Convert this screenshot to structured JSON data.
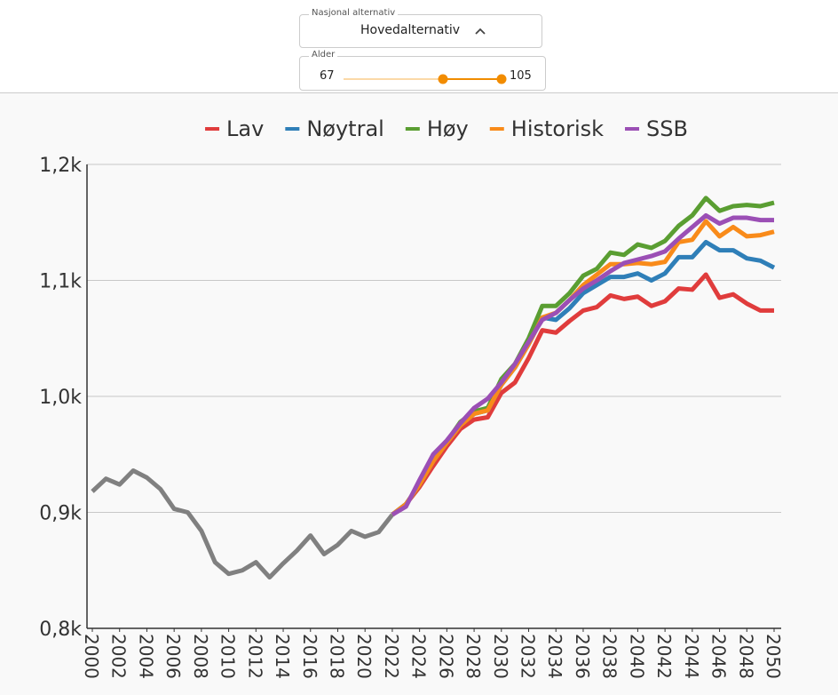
{
  "controls": {
    "alternative_label": "Nasjonal alternativ",
    "alternative_value": "Hovedalternativ",
    "age_label": "Alder",
    "age_min": "67",
    "age_max": "105"
  },
  "chart_data": {
    "type": "line",
    "x": [
      2000,
      2001,
      2002,
      2003,
      2004,
      2005,
      2006,
      2007,
      2008,
      2009,
      2010,
      2011,
      2012,
      2013,
      2014,
      2015,
      2016,
      2017,
      2018,
      2019,
      2020,
      2021,
      2022,
      2023,
      2024,
      2025,
      2026,
      2027,
      2028,
      2029,
      2030,
      2031,
      2032,
      2033,
      2034,
      2035,
      2036,
      2037,
      2038,
      2039,
      2040,
      2041,
      2042,
      2043,
      2044,
      2045,
      2046,
      2047,
      2048,
      2049,
      2050
    ],
    "xlim": [
      2000,
      2050
    ],
    "xticks": [
      2000,
      2002,
      2004,
      2006,
      2008,
      2010,
      2012,
      2014,
      2016,
      2018,
      2020,
      2022,
      2024,
      2026,
      2028,
      2030,
      2032,
      2034,
      2036,
      2038,
      2040,
      2042,
      2044,
      2046,
      2048,
      2050
    ],
    "ylim": [
      800,
      1200
    ],
    "yticks": [
      {
        "value": 800,
        "label": "0,8k"
      },
      {
        "value": 900,
        "label": "0,9k"
      },
      {
        "value": 1000,
        "label": "1,0k"
      },
      {
        "value": 1100,
        "label": "1,1k"
      },
      {
        "value": 1200,
        "label": "1,2k"
      }
    ],
    "grid": true,
    "legend": "top",
    "series": [
      {
        "color": "#808080",
        "values": [
          918,
          929,
          924,
          936,
          930,
          920,
          903,
          900,
          884,
          857,
          847,
          850,
          857,
          844,
          856,
          867,
          880,
          864,
          872,
          884,
          879,
          883,
          898,
          null,
          null,
          null,
          null,
          null,
          null,
          null,
          null,
          null,
          null,
          null,
          null,
          null,
          null,
          null,
          null,
          null,
          null,
          null,
          null,
          null,
          null,
          null,
          null,
          null,
          null,
          null,
          null
        ]
      },
      {
        "name": "Lav",
        "color": "#e03c3c",
        "values": [
          null,
          null,
          null,
          null,
          null,
          null,
          null,
          null,
          null,
          null,
          null,
          null,
          null,
          null,
          null,
          null,
          null,
          null,
          null,
          null,
          null,
          null,
          898,
          907,
          922,
          940,
          957,
          972,
          980,
          982,
          1003,
          1012,
          1033,
          1057,
          1055,
          1065,
          1074,
          1077,
          1087,
          1084,
          1086,
          1078,
          1082,
          1093,
          1092,
          1105,
          1085,
          1088,
          1080,
          1074,
          1074
        ]
      },
      {
        "name": "Nøytral",
        "color": "#2f7fb8",
        "values": [
          null,
          null,
          null,
          null,
          null,
          null,
          null,
          null,
          null,
          null,
          null,
          null,
          null,
          null,
          null,
          null,
          null,
          null,
          null,
          null,
          null,
          null,
          898,
          907,
          924,
          944,
          960,
          975,
          985,
          988,
          1010,
          1025,
          1045,
          1068,
          1066,
          1076,
          1089,
          1096,
          1103,
          1103,
          1106,
          1100,
          1106,
          1120,
          1120,
          1133,
          1126,
          1126,
          1119,
          1117,
          1111
        ]
      },
      {
        "name": "Høy",
        "color": "#5a9e32",
        "values": [
          null,
          null,
          null,
          null,
          null,
          null,
          null,
          null,
          null,
          null,
          null,
          null,
          null,
          null,
          null,
          null,
          null,
          null,
          null,
          null,
          null,
          null,
          898,
          907,
          924,
          945,
          961,
          978,
          987,
          990,
          1015,
          1028,
          1050,
          1078,
          1078,
          1089,
          1104,
          1110,
          1124,
          1122,
          1131,
          1128,
          1134,
          1147,
          1156,
          1171,
          1160,
          1164,
          1165,
          1164,
          1167
        ]
      },
      {
        "name": "Historisk",
        "color": "#f98b1a",
        "values": [
          null,
          null,
          null,
          null,
          null,
          null,
          null,
          null,
          null,
          null,
          null,
          null,
          null,
          null,
          null,
          null,
          null,
          null,
          null,
          null,
          null,
          null,
          898,
          907,
          924,
          944,
          960,
          975,
          985,
          988,
          1010,
          1025,
          1045,
          1068,
          1072,
          1083,
          1096,
          1105,
          1114,
          1114,
          1115,
          1114,
          1116,
          1133,
          1135,
          1151,
          1138,
          1146,
          1138,
          1139,
          1142
        ]
      },
      {
        "name": "SSB",
        "color": "#9b4fb5",
        "values": [
          null,
          null,
          null,
          null,
          null,
          null,
          null,
          null,
          null,
          null,
          null,
          null,
          null,
          null,
          null,
          null,
          null,
          null,
          null,
          null,
          null,
          null,
          898,
          905,
          928,
          950,
          962,
          977,
          990,
          998,
          1012,
          1028,
          1047,
          1066,
          1072,
          1083,
          1093,
          1100,
          1108,
          1115,
          1118,
          1121,
          1125,
          1136,
          1146,
          1156,
          1149,
          1154,
          1154,
          1152,
          1152
        ]
      }
    ]
  }
}
